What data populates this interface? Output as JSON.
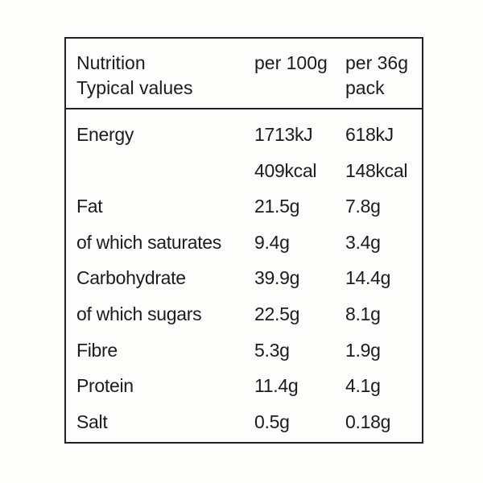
{
  "header": {
    "label_line1": "Nutrition",
    "label_line2": "Typical values",
    "per100": "per 100g",
    "perpack_line1": "per 36g",
    "perpack_line2": "pack"
  },
  "rows": [
    {
      "label": "Energy",
      "per100": "1713kJ",
      "perpack": "618kJ"
    },
    {
      "label": "",
      "per100": "409kcal",
      "perpack": "148kcal"
    },
    {
      "label": "Fat",
      "per100": "21.5g",
      "perpack": "7.8g"
    },
    {
      "label": "of which saturates",
      "per100": "9.4g",
      "perpack": "3.4g"
    },
    {
      "label": "Carbohydrate",
      "per100": "39.9g",
      "perpack": "14.4g"
    },
    {
      "label": "of which sugars",
      "per100": "22.5g",
      "perpack": "8.1g"
    },
    {
      "label": "Fibre",
      "per100": "5.3g",
      "perpack": "1.9g"
    },
    {
      "label": "Protein",
      "per100": "11.4g",
      "perpack": "4.1g"
    },
    {
      "label": "Salt",
      "per100": "0.5g",
      "perpack": "0.18g"
    }
  ]
}
